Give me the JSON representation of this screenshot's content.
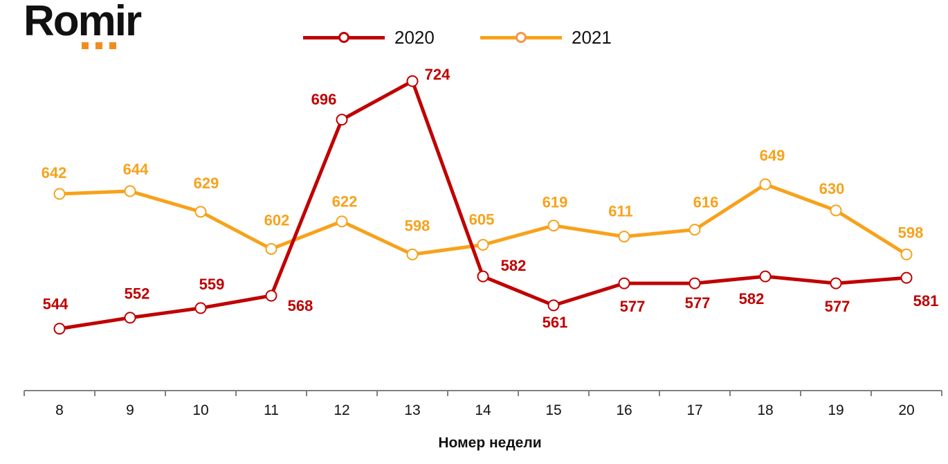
{
  "logo": {
    "text": "Romir",
    "dot_color": "#f28c1e"
  },
  "chart_data": {
    "type": "line",
    "title": "",
    "xlabel": "Номер недели",
    "ylabel": "",
    "categories": [
      "8",
      "9",
      "10",
      "11",
      "12",
      "13",
      "14",
      "15",
      "16",
      "17",
      "18",
      "19",
      "20"
    ],
    "ylim": [
      499,
      783
    ],
    "grid": false,
    "legend_position": "top-center",
    "series": [
      {
        "name": "2020",
        "color": "#c00000",
        "values": [
          544,
          552,
          559,
          568,
          696,
          724,
          582,
          561,
          577,
          577,
          582,
          577,
          581
        ]
      },
      {
        "name": "2021",
        "color": "#f7a21b",
        "values": [
          642,
          644,
          629,
          602,
          622,
          598,
          605,
          619,
          611,
          616,
          649,
          630,
          598
        ]
      }
    ]
  }
}
